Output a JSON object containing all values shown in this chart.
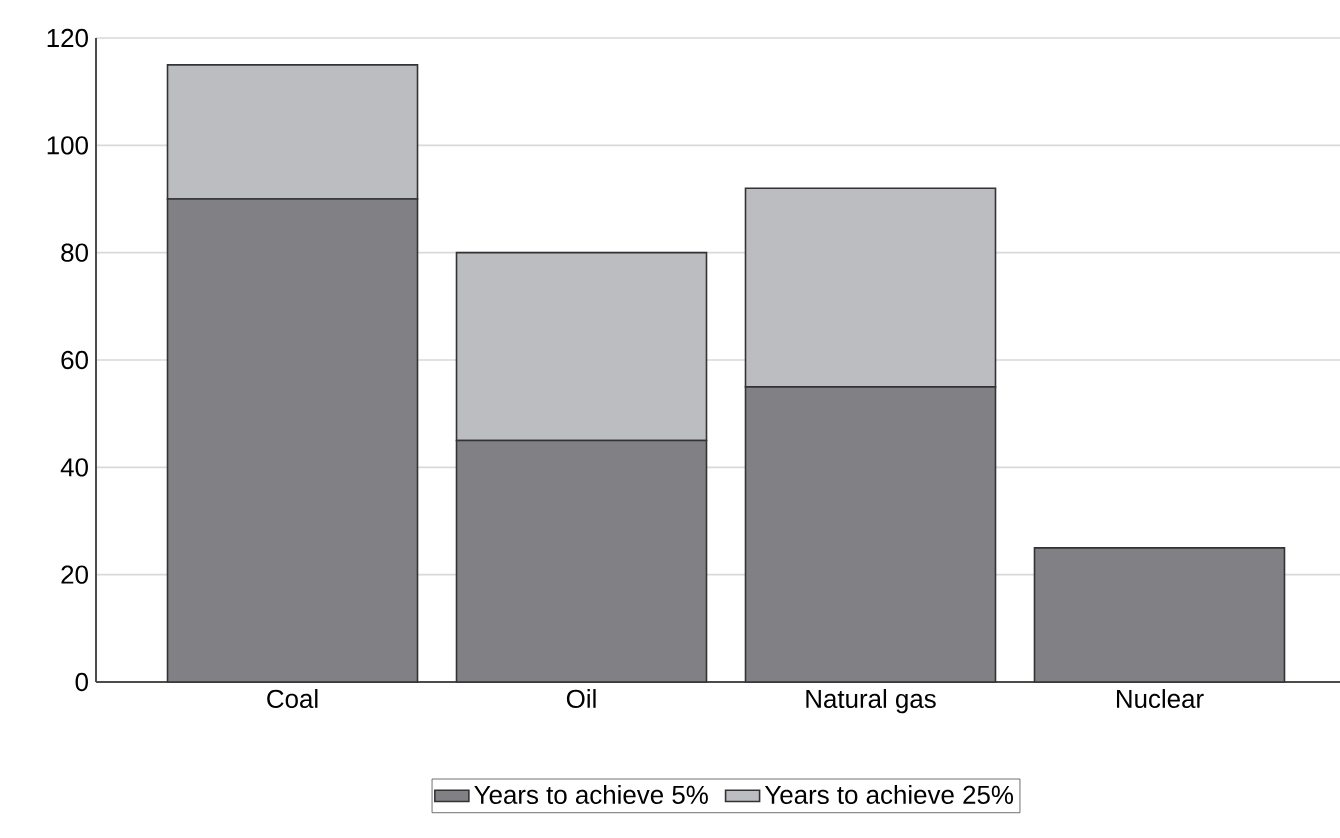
{
  "chart_data": {
    "type": "bar",
    "stacked": true,
    "categories": [
      "Coal",
      "Oil",
      "Natural gas",
      "Nuclear"
    ],
    "series": [
      {
        "name": "Years to achieve 5%",
        "color": "#808085",
        "values": [
          90,
          45,
          55,
          25
        ]
      },
      {
        "name": "Years to achieve 25%",
        "color": "#bcbdc1",
        "values": [
          25,
          35,
          37,
          null
        ]
      }
    ],
    "ylim": [
      0,
      120
    ],
    "yticks": [
      0,
      20,
      40,
      60,
      80,
      100,
      120
    ],
    "grid": "y",
    "legend": "bottom"
  }
}
